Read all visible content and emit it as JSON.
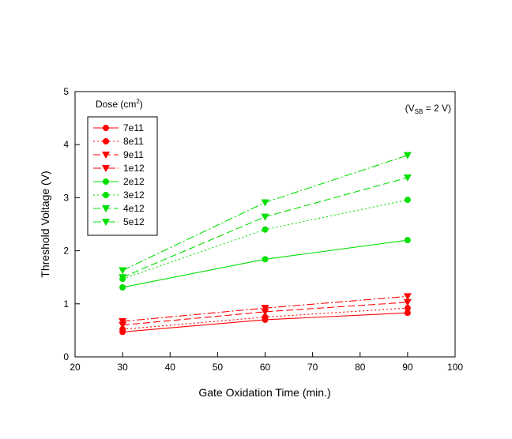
{
  "chart_data": {
    "type": "line",
    "title": "",
    "xlabel": "Gate Oxidation Time (min.)",
    "ylabel": "Threshold Voltage (V)",
    "xlim": [
      20,
      100
    ],
    "ylim": [
      0,
      5
    ],
    "xticks": [
      20,
      30,
      40,
      50,
      60,
      70,
      80,
      90,
      100
    ],
    "yticks": [
      0,
      1,
      2,
      3,
      4,
      5
    ],
    "grid": false,
    "legend_title": "Dose (cm",
    "legend_title_sup": "2",
    "legend_title_end": ")",
    "legend_position": "top-left",
    "annotation": {
      "pre": "(V",
      "sub": "SB",
      "post": " = 2 V)"
    },
    "colors": {
      "red": "#ff0000",
      "green": "#00e000"
    },
    "x": [
      30,
      60,
      90
    ],
    "series": [
      {
        "name": "7e11",
        "values": [
          0.47,
          0.7,
          0.83
        ],
        "color": "#ff0000",
        "marker": "circle",
        "dash": "solid"
      },
      {
        "name": "8e11",
        "values": [
          0.52,
          0.75,
          0.92
        ],
        "color": "#ff0000",
        "marker": "circle",
        "dash": "dot"
      },
      {
        "name": "9e11",
        "values": [
          0.6,
          0.85,
          1.03
        ],
        "color": "#ff0000",
        "marker": "triangle-down",
        "dash": "dash"
      },
      {
        "name": "1e12",
        "values": [
          0.67,
          0.92,
          1.14
        ],
        "color": "#ff0000",
        "marker": "triangle-down",
        "dash": "dashdot"
      },
      {
        "name": "2e12",
        "values": [
          1.31,
          1.84,
          2.2
        ],
        "color": "#00e000",
        "marker": "circle",
        "dash": "solid"
      },
      {
        "name": "3e12",
        "values": [
          1.47,
          2.4,
          2.96
        ],
        "color": "#00e000",
        "marker": "circle",
        "dash": "dot"
      },
      {
        "name": "4e12",
        "values": [
          1.5,
          2.64,
          3.38
        ],
        "color": "#00e000",
        "marker": "triangle-down",
        "dash": "dash"
      },
      {
        "name": "5e12",
        "values": [
          1.63,
          2.91,
          3.8
        ],
        "color": "#00e000",
        "marker": "triangle-down",
        "dash": "dashdot"
      }
    ]
  }
}
